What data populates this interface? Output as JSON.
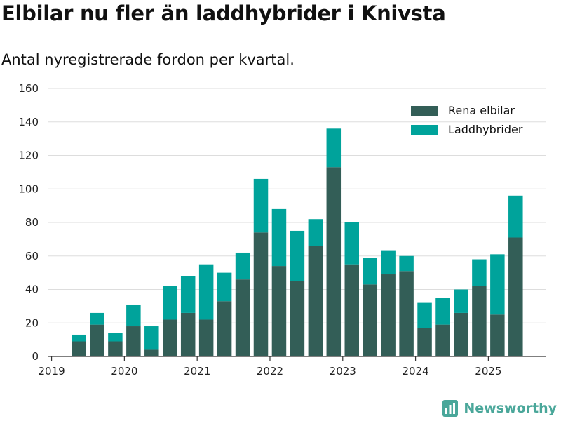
{
  "title": "Elbilar nu fler än laddhybrider i Knivsta",
  "subtitle": "Antal nyregistrerade fordon per kvartal.",
  "brand": {
    "name": "Newsworthy",
    "icon": "newsworthy-logo-icon"
  },
  "colors": {
    "electric": "#335e57",
    "hybrid": "#00a39b",
    "grid": "#dddddd",
    "axis": "#333333",
    "brand": "#4aa79a"
  },
  "chart_data": {
    "type": "bar",
    "stacked": true,
    "categories": [
      "2019 Q2",
      "2019 Q3",
      "2019 Q4",
      "2020 Q1",
      "2020 Q2",
      "2020 Q3",
      "2020 Q4",
      "2021 Q1",
      "2021 Q2",
      "2021 Q3",
      "2021 Q4",
      "2022 Q1",
      "2022 Q2",
      "2022 Q3",
      "2022 Q4",
      "2023 Q1",
      "2023 Q2",
      "2023 Q3",
      "2023 Q4",
      "2024 Q1",
      "2024 Q2",
      "2024 Q3",
      "2024 Q4",
      "2025 Q1",
      "2025 Q2"
    ],
    "series": [
      {
        "name": "Rena elbilar",
        "values": [
          9,
          19,
          9,
          18,
          4,
          22,
          26,
          22,
          33,
          46,
          74,
          54,
          45,
          66,
          113,
          55,
          43,
          49,
          51,
          17,
          19,
          26,
          42,
          25,
          71
        ]
      },
      {
        "name": "Laddhybrider",
        "values": [
          4,
          7,
          5,
          13,
          14,
          20,
          22,
          33,
          17,
          16,
          32,
          34,
          30,
          16,
          23,
          25,
          16,
          14,
          9,
          15,
          16,
          14,
          16,
          36,
          25
        ]
      }
    ],
    "x_ticks": [
      "2019",
      "2020",
      "2021",
      "2022",
      "2023",
      "2024",
      "2025"
    ],
    "y_ticks": [
      0,
      20,
      40,
      60,
      80,
      100,
      120,
      140,
      160
    ],
    "ylim": [
      0,
      160
    ],
    "grid": true,
    "legend_position": "top-right"
  }
}
